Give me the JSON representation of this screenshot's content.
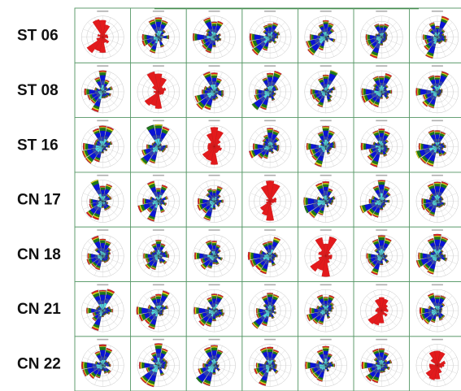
{
  "figure": {
    "row_labels": [
      "ST 06",
      "ST 08",
      "ST 16",
      "CN 17",
      "CN 18",
      "CN 21",
      "CN 22"
    ],
    "colors": {
      "border": "#5a9a6a",
      "top_accent": "#2e7d32",
      "diagonal_rose": "#e31a1c",
      "band_1": "#4dd9e6",
      "band_2": "#2b3fb8",
      "band_3": "#0a14d6",
      "band_4": "#1a7a1a",
      "band_5": "#e5e510",
      "band_6": "#e31a1c"
    },
    "icon": "wind-rose"
  },
  "chart_data": {
    "type": "wind-rose-matrix",
    "title": "",
    "rows": [
      "ST 06",
      "ST 08",
      "ST 16",
      "CN 17",
      "CN 18",
      "CN 21",
      "CN 22"
    ],
    "columns": 7,
    "diagonal_style": "single-color red rose",
    "off_diagonal_style": "stacked colored rose (cyan, blue, green, yellow, red)",
    "directions": 16,
    "panel_titles_legible": false,
    "values_legible": false,
    "grid": true,
    "legend": "none"
  }
}
